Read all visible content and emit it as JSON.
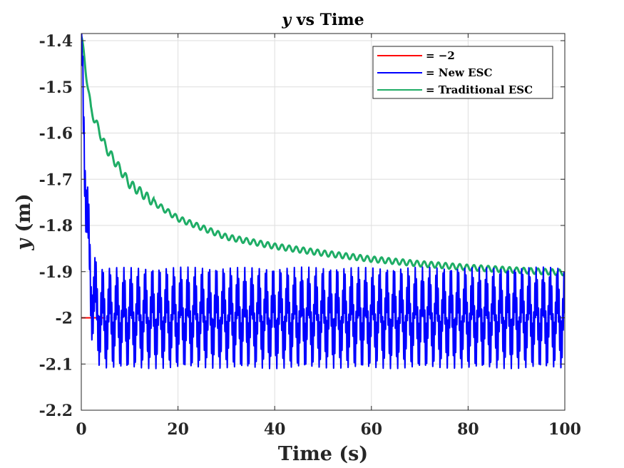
{
  "chart_data": {
    "type": "line",
    "title": "y vs Time",
    "title_var": "y",
    "title_rest": " vs Time",
    "xlabel": "Time (s)",
    "ylabel": "y (m)",
    "ylabel_var": "y",
    "ylabel_rest": " (m)",
    "xlim": [
      0,
      100
    ],
    "ylim": [
      -2.2,
      -1.38
    ],
    "x_ticks": [
      0,
      20,
      40,
      60,
      80,
      100
    ],
    "x_tick_labels": [
      "0",
      "20",
      "40",
      "60",
      "80",
      "100"
    ],
    "y_ticks": [
      -2.2,
      -2.1,
      -2.0,
      -1.9,
      -1.8,
      -1.7,
      -1.6,
      -1.5,
      -1.4
    ],
    "y_tick_labels": [
      "-2.2",
      "-2.1",
      "-2",
      "-1.9",
      "-1.8",
      "-1.7",
      "-1.6",
      "-1.5",
      "-1.4"
    ],
    "grid": true,
    "legend_position": "top-right",
    "series": [
      {
        "name": "= −2",
        "color": "#ff0000",
        "x": [
          0,
          5
        ],
        "y": [
          -2.0,
          -2.0
        ]
      },
      {
        "name": "= New ESC",
        "color": "#0000ff",
        "x": [
          0,
          0.5,
          1.0,
          1.5,
          2.0,
          3.0,
          4.0,
          5.0,
          7.0,
          10,
          20,
          30,
          40,
          50,
          60,
          70,
          80,
          90,
          100
        ],
        "y": [
          -1.38,
          -1.55,
          -1.75,
          -1.85,
          -1.93,
          -1.98,
          -2.0,
          -2.0,
          -2.0,
          -2.0,
          -2.0,
          -2.0,
          -2.0,
          -2.0,
          -2.0,
          -2.0,
          -2.0,
          -2.0,
          -2.0
        ],
        "oscillation_amplitude": 0.11,
        "oscillation_period": 1.47
      },
      {
        "name": "= Traditional ESC",
        "color": "#1fad66",
        "x": [
          0,
          2,
          5,
          10,
          15,
          20,
          30,
          40,
          50,
          60,
          70,
          80,
          90,
          100
        ],
        "y": [
          -1.39,
          -1.55,
          -1.63,
          -1.71,
          -1.75,
          -1.785,
          -1.825,
          -1.845,
          -1.86,
          -1.873,
          -1.883,
          -1.891,
          -1.897,
          -1.902
        ],
        "oscillation_amplitude": 0.006,
        "oscillation_period": 1.47
      }
    ]
  }
}
